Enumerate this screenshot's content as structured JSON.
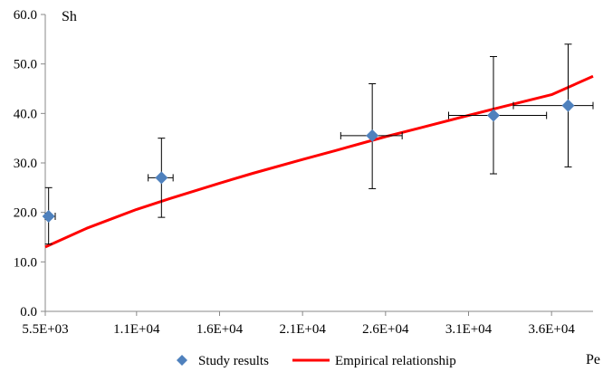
{
  "chart_data": {
    "type": "scatter",
    "title": "",
    "xlabel": "Pe",
    "ylabel": "Sh",
    "xlim": [
      5500,
      38500
    ],
    "ylim": [
      0,
      60
    ],
    "x_ticks": [
      5500,
      11000,
      16000,
      21000,
      26000,
      31000,
      36000
    ],
    "x_tick_labels": [
      "5.5E+03",
      "1.1E+04",
      "1.6E+04",
      "2.1E+04",
      "2.6E+04",
      "3.1E+04",
      "3.6E+04"
    ],
    "y_ticks": [
      0,
      10,
      20,
      30,
      40,
      50,
      60
    ],
    "y_tick_labels": [
      "0.0",
      "10.0",
      "20.0",
      "30.0",
      "40.0",
      "50.0",
      "60.0"
    ],
    "grid": false,
    "legend_position": "bottom",
    "series": [
      {
        "name": "Study results",
        "kind": "scatter",
        "color": "#4f81bd",
        "marker": "diamond",
        "points": [
          {
            "x": 5700,
            "y": 19.2,
            "y_low": 13.6,
            "y_high": 25.0,
            "x_low": 5500,
            "x_high": 6100
          },
          {
            "x": 12500,
            "y": 27.0,
            "y_low": 19.0,
            "y_high": 35.0,
            "x_low": 11700,
            "x_high": 13200
          },
          {
            "x": 25200,
            "y": 35.5,
            "y_low": 24.8,
            "y_high": 46.0,
            "x_low": 23300,
            "x_high": 27000
          },
          {
            "x": 32500,
            "y": 39.6,
            "y_low": 27.8,
            "y_high": 51.5,
            "x_low": 29800,
            "x_high": 35700
          },
          {
            "x": 37000,
            "y": 41.6,
            "y_low": 29.2,
            "y_high": 54.0,
            "x_low": 33700,
            "x_high": 40200
          }
        ]
      },
      {
        "name": "Empirical relationship",
        "kind": "line",
        "color": "#ff0000",
        "x": [
          5500,
          8000,
          11000,
          13000,
          16000,
          18000,
          21000,
          23000,
          26000,
          28000,
          31000,
          33000,
          36000,
          38500
        ],
        "y": [
          13.0,
          16.8,
          20.6,
          22.8,
          25.9,
          27.9,
          30.7,
          32.5,
          35.3,
          37.0,
          39.6,
          41.3,
          43.8,
          47.5
        ]
      }
    ]
  }
}
